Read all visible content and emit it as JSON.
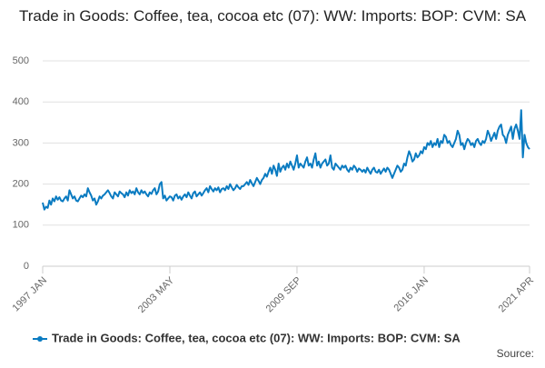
{
  "chart_data": {
    "type": "line",
    "title": "Trade in Goods: Coffee, tea, cocoa etc (07): WW: Imports: BOP: CVM: SA",
    "source": "Source:",
    "categories": [
      "1997 JAN",
      null,
      null,
      null,
      null,
      null,
      null,
      null,
      null,
      null,
      null,
      null,
      null,
      null,
      null,
      null,
      null,
      null,
      null,
      null,
      null,
      null,
      null,
      null,
      null,
      null,
      null,
      null,
      null,
      null,
      null,
      null,
      null,
      null,
      null,
      null,
      null,
      null,
      null,
      null,
      null,
      null,
      null,
      null,
      null,
      null,
      null,
      null,
      null,
      null,
      null,
      null,
      null,
      null,
      null,
      null,
      null,
      null,
      null,
      null,
      null,
      null,
      null,
      null,
      null,
      null,
      null,
      null,
      null,
      null,
      null,
      null,
      null,
      null,
      null,
      null,
      "2003 MAY",
      null,
      null,
      null,
      null,
      null,
      null,
      null,
      null,
      null,
      null,
      null,
      null,
      null,
      null,
      null,
      null,
      null,
      null,
      null,
      null,
      null,
      null,
      null,
      null,
      null,
      null,
      null,
      null,
      null,
      null,
      null,
      null,
      null,
      null,
      null,
      null,
      null,
      null,
      null,
      null,
      null,
      null,
      null,
      null,
      null,
      null,
      null,
      null,
      null,
      null,
      null,
      null,
      null,
      null,
      null,
      null,
      null,
      null,
      null,
      null,
      null,
      null,
      null,
      null,
      null,
      null,
      null,
      null,
      null,
      null,
      null,
      null,
      null,
      null,
      null,
      "2009 SEP",
      null,
      null,
      null,
      null,
      null,
      null,
      null,
      null,
      null,
      null,
      null,
      null,
      null,
      null,
      null,
      null,
      null,
      null,
      null,
      null,
      null,
      null,
      null,
      null,
      null,
      null,
      null,
      null,
      null,
      null,
      null,
      null,
      null,
      null,
      null,
      null,
      null,
      null,
      null,
      null,
      null,
      null,
      null,
      null,
      null,
      null,
      null,
      null,
      null,
      null,
      null,
      null,
      null,
      null,
      null,
      null,
      null,
      null,
      null,
      null,
      null,
      null,
      null,
      null,
      null,
      null,
      null,
      null,
      null,
      null,
      null,
      null,
      null,
      null,
      null,
      "2016 JAN",
      null,
      null,
      null,
      null,
      null,
      null,
      null,
      null,
      null,
      null,
      null,
      null,
      null,
      null,
      null,
      null,
      null,
      null,
      null,
      null,
      null,
      null,
      null,
      null,
      null,
      null,
      null,
      null,
      null,
      null,
      null,
      null,
      null,
      null,
      null,
      null,
      null,
      null,
      null,
      null,
      null,
      null,
      null,
      null,
      null,
      null,
      null,
      null,
      null,
      null,
      null,
      null,
      null,
      null,
      null,
      null,
      null,
      null,
      null,
      null,
      null,
      null,
      "2021 APR"
    ],
    "series": [
      {
        "name": "Trade in Goods: Coffee, tea, cocoa etc (07): WW: Imports: BOP: CVM: SA",
        "color": "#0a7bc1",
        "values": [
          155,
          138,
          145,
          142,
          160,
          150,
          165,
          158,
          170,
          162,
          168,
          160,
          158,
          165,
          170,
          160,
          185,
          175,
          165,
          170,
          160,
          158,
          165,
          172,
          168,
          175,
          170,
          190,
          180,
          172,
          160,
          165,
          150,
          158,
          170,
          165,
          172,
          175,
          180,
          185,
          178,
          170,
          165,
          180,
          175,
          170,
          182,
          178,
          175,
          168,
          180,
          172,
          185,
          178,
          182,
          175,
          190,
          180,
          175,
          185,
          178,
          182,
          175,
          170,
          180,
          176,
          185,
          190,
          175,
          182,
          200,
          205,
          165,
          172,
          160,
          165,
          170,
          168,
          160,
          172,
          175,
          165,
          170,
          162,
          170,
          175,
          168,
          180,
          172,
          165,
          178,
          182,
          170,
          175,
          180,
          172,
          178,
          185,
          190,
          180,
          195,
          188,
          182,
          190,
          185,
          192,
          180,
          188,
          190,
          185,
          195,
          188,
          200,
          192,
          185,
          190,
          198,
          192,
          188,
          195,
          195,
          200,
          205,
          198,
          210,
          202,
          195,
          205,
          215,
          208,
          200,
          210,
          215,
          225,
          218,
          230,
          240,
          225,
          245,
          235,
          220,
          250,
          230,
          240,
          245,
          235,
          250,
          240,
          255,
          245,
          235,
          250,
          270,
          240,
          250,
          245,
          240,
          255,
          265,
          245,
          250,
          240,
          260,
          275,
          245,
          255,
          240,
          250,
          255,
          260,
          245,
          250,
          270,
          240,
          235,
          250,
          245,
          240,
          235,
          245,
          240,
          245,
          235,
          230,
          240,
          235,
          245,
          240,
          230,
          238,
          235,
          230,
          235,
          228,
          240,
          232,
          225,
          235,
          240,
          230,
          228,
          235,
          225,
          232,
          238,
          230,
          240,
          235,
          225,
          215,
          225,
          235,
          245,
          240,
          230,
          235,
          250,
          245,
          265,
          280,
          270,
          255,
          260,
          275,
          265,
          270,
          280,
          275,
          290,
          285,
          300,
          295,
          305,
          290,
          300,
          295,
          310,
          290,
          305,
          300,
          320,
          315,
          300,
          305,
          295,
          290,
          300,
          310,
          330,
          320,
          295,
          300,
          285,
          300,
          310,
          305,
          295,
          300,
          290,
          305,
          310,
          300,
          295,
          305,
          300,
          310,
          330,
          320,
          305,
          315,
          325,
          310,
          330,
          340,
          345,
          320,
          315,
          300,
          320,
          330,
          340,
          310,
          335,
          345,
          330,
          310,
          380,
          265,
          320,
          300,
          290,
          285
        ]
      }
    ],
    "ylim": [
      0,
      500
    ],
    "yticks": [
      0,
      100,
      200,
      300,
      400,
      500
    ],
    "grid": true
  }
}
